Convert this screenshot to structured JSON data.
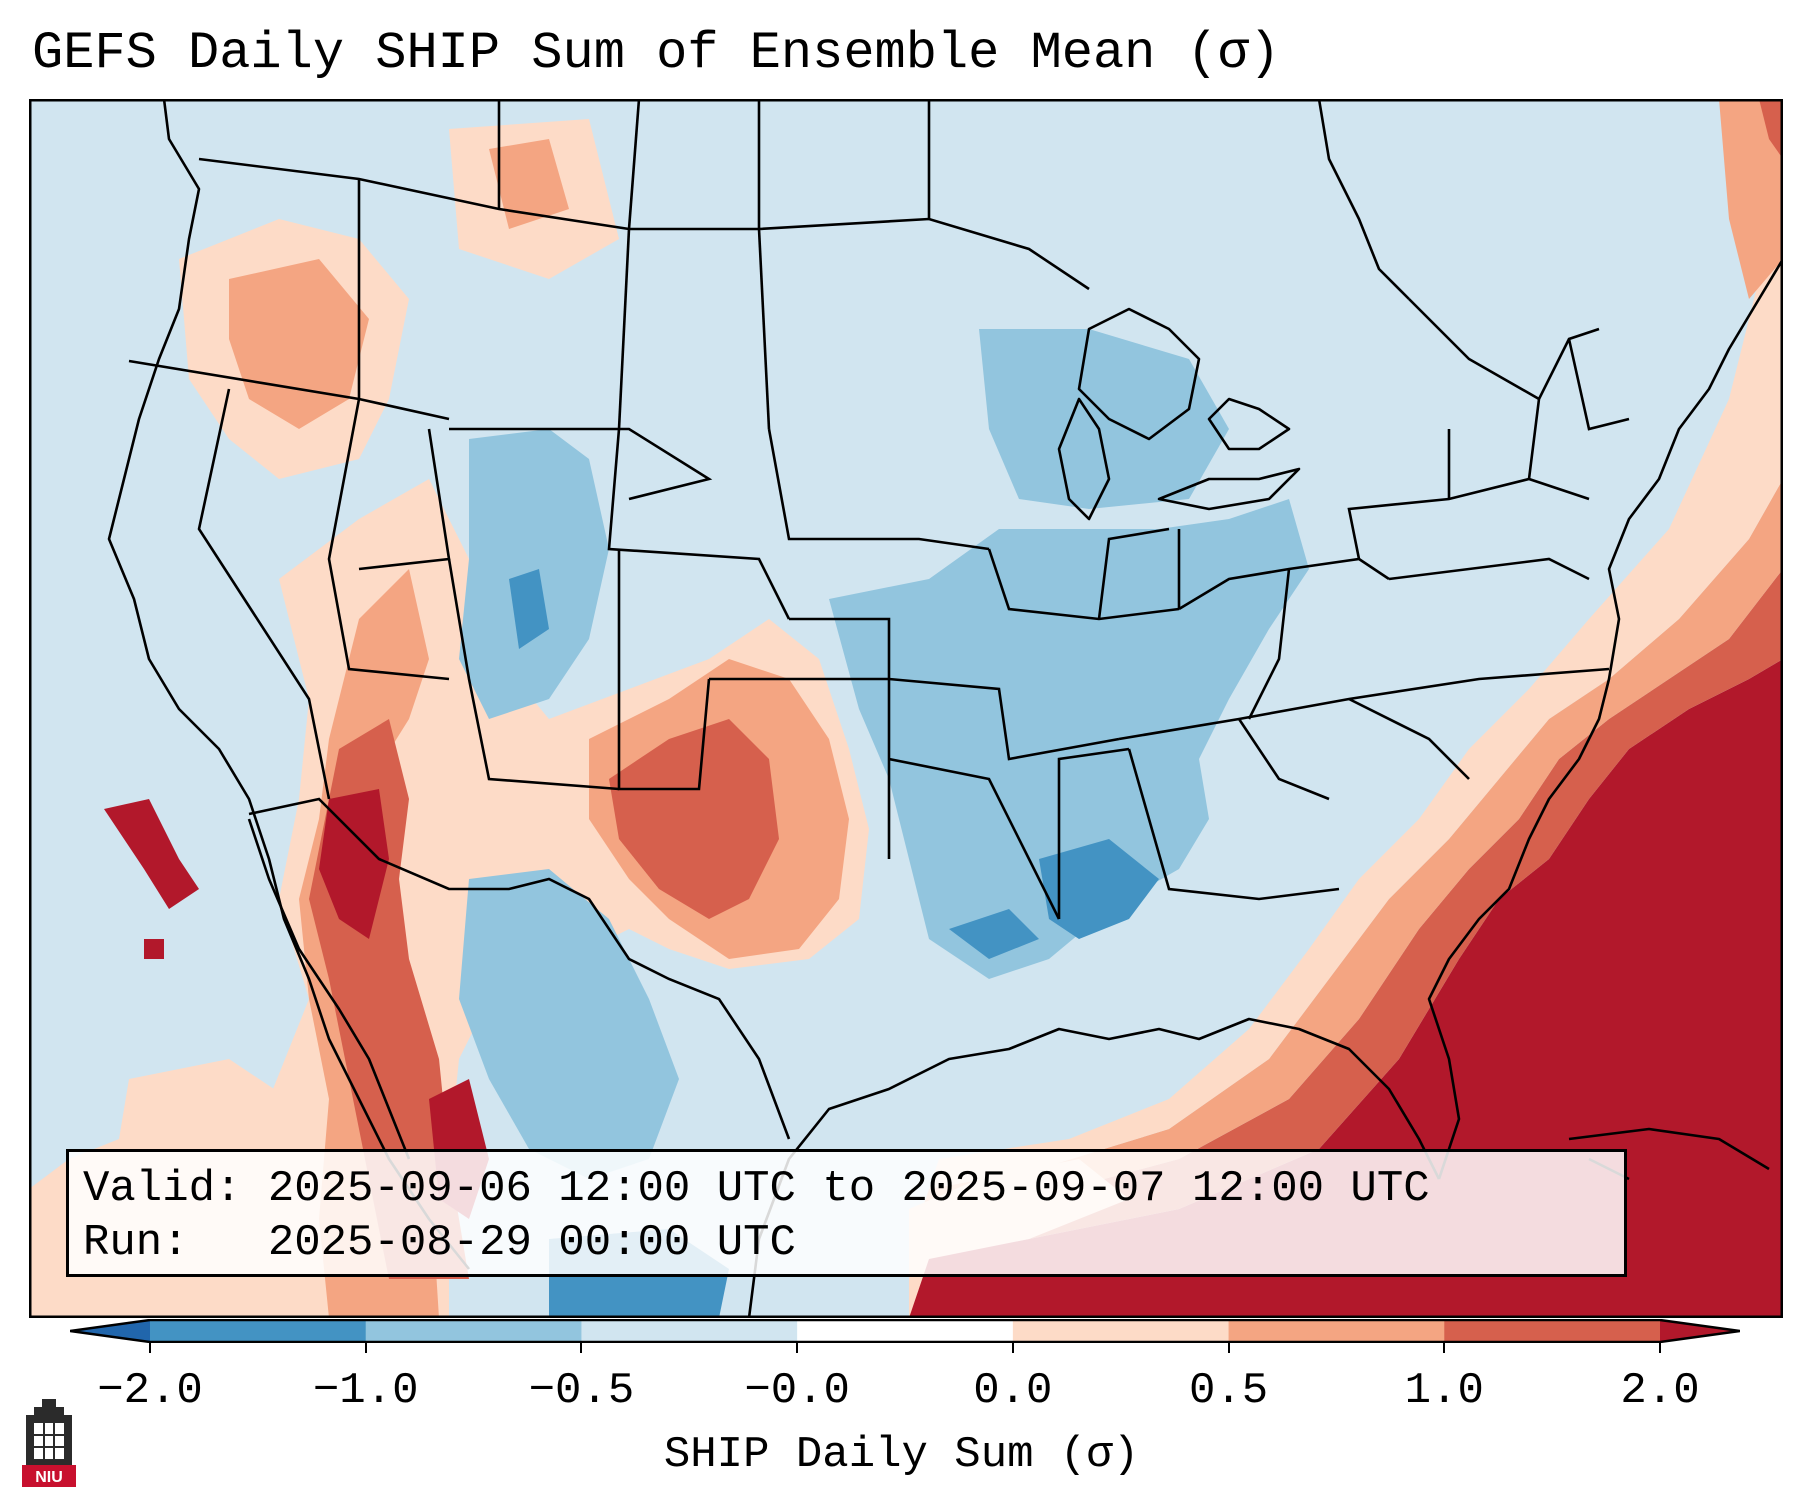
{
  "title": "GEFS Daily SHIP Sum of Ensemble Mean (σ)",
  "info": {
    "valid_label": "Valid:",
    "valid_value": "2025-09-06 12:00 UTC to 2025-09-07 12:00 UTC",
    "run_label": "Run:",
    "run_value": "2025-08-29 00:00 UTC"
  },
  "colorbar": {
    "label": "SHIP Daily Sum (σ)",
    "ticks": [
      "−2.0",
      "−1.0",
      "−0.5",
      "−0.0",
      "0.0",
      "0.5",
      "1.0",
      "2.0"
    ],
    "colors": [
      "#2166ac",
      "#4393c3",
      "#92c5de",
      "#d1e5f0",
      "#ffffff",
      "#fddbc7",
      "#f4a582",
      "#d6604d",
      "#b2182b"
    ]
  },
  "logo": {
    "text": "NIU",
    "icon": "university-tower-icon"
  },
  "legend_summary": {
    "min_value": -2.0,
    "max_value": 2.0,
    "extend": "both"
  }
}
